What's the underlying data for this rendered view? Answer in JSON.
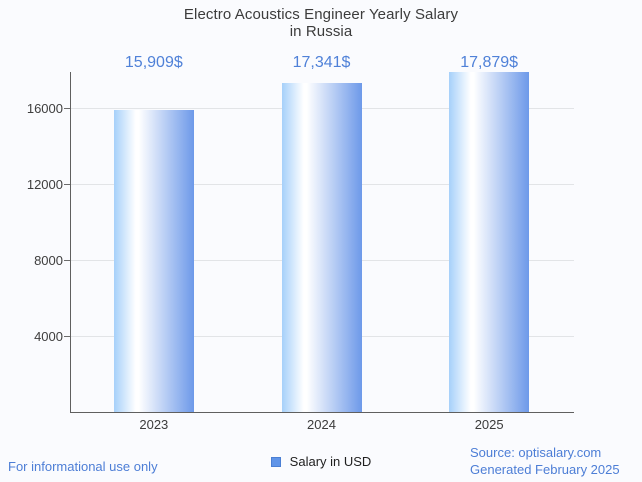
{
  "chart_data": {
    "type": "bar",
    "title_lines": [
      "Electro Acoustics Engineer Yearly Salary",
      "in Russia"
    ],
    "title": "Electro Acoustics Engineer Yearly Salary in Russia",
    "categories": [
      "2023",
      "2024",
      "2025"
    ],
    "values": [
      15909,
      17341,
      17879
    ],
    "value_labels": [
      "15,909$",
      "17,341$",
      "17,879$"
    ],
    "y_ticks": [
      4000,
      8000,
      12000,
      16000
    ],
    "y_tick_labels": [
      "4000",
      "8000",
      "12000",
      "16000"
    ],
    "ylim": [
      0,
      17900
    ],
    "xlabel": "",
    "ylabel": "",
    "grid": true,
    "legend": {
      "label": "Salary in USD",
      "position": "bottom"
    }
  },
  "footer": {
    "left_note": "For informational use only",
    "source": "Source: optisalary.com",
    "generated": "Generated February 2025"
  },
  "colors": {
    "background": "#fafbfe",
    "bar_gradient_left": "#a6d0fa",
    "bar_gradient_mid": "#ffffff",
    "bar_gradient_right": "#6d99e9",
    "annotation_blue": "#4f81d8",
    "footer_blue": "#4d7ed6",
    "legend_swatch_fill": "#5f94e8",
    "legend_swatch_border": "#4a7fd4",
    "title_text": "#3c3c3c",
    "axis_text": "#3e3e3e",
    "axis_line": "#5f5f5f",
    "gridline": "#e2e4e7"
  }
}
